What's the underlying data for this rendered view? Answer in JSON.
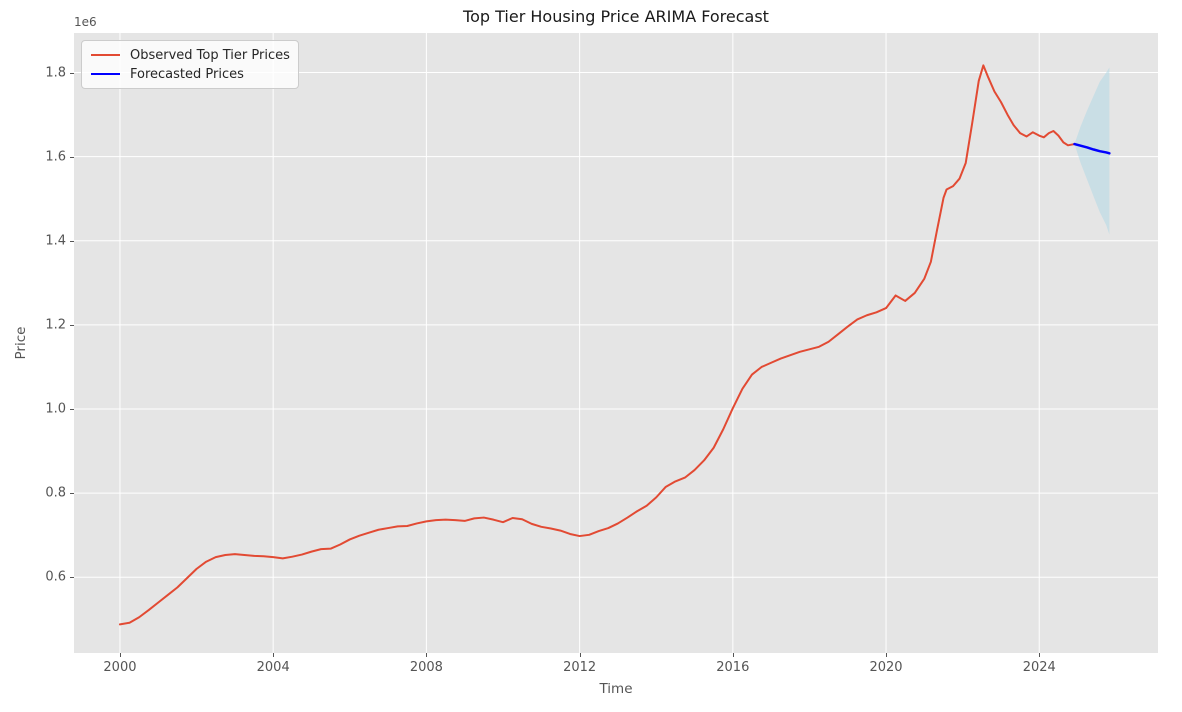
{
  "title": "Top Tier Housing Price ARIMA Forecast",
  "axes": {
    "xlabel": "Time",
    "ylabel": "Price",
    "offset_text": "1e6"
  },
  "legend": {
    "items": [
      {
        "label": "Observed Top Tier Prices",
        "color": "#E24A33"
      },
      {
        "label": "Forecasted Prices",
        "color": "#0000FF"
      }
    ]
  },
  "colors": {
    "figure_background": "#FFFFFF",
    "plot_background": "#E5E5E5",
    "gridline": "#FFFFFF",
    "observed_line": "#E24A33",
    "forecast_line": "#0000FF",
    "ci_fill": "rgba(173,216,230,0.5)",
    "tick_label": "#555555",
    "title_text": "#1a1a1a"
  },
  "chart_data": {
    "type": "line",
    "title": "Top Tier Housing Price ARIMA Forecast",
    "xlabel": "Time",
    "ylabel": "Price",
    "y_scale_offset": "1e6",
    "grid": true,
    "legend_position": "upper left",
    "xlim": [
      1998.8,
      2027.1
    ],
    "ylim": [
      0.42,
      1.894
    ],
    "x_ticks": [
      2000,
      2004,
      2008,
      2012,
      2016,
      2020,
      2024
    ],
    "x_tick_labels": [
      "2000",
      "2004",
      "2008",
      "2012",
      "2016",
      "2020",
      "2024"
    ],
    "y_ticks": [
      0.6,
      0.8,
      1.0,
      1.2,
      1.4,
      1.6,
      1.8
    ],
    "y_tick_labels": [
      "0.6",
      "0.8",
      "1.0",
      "1.2",
      "1.4",
      "1.6",
      "1.8"
    ],
    "series": [
      {
        "name": "Observed Top Tier Prices",
        "color": "#E24A33",
        "width": 2,
        "points": [
          [
            2000.0,
            0.488
          ],
          [
            2000.25,
            0.492
          ],
          [
            2000.5,
            0.505
          ],
          [
            2000.75,
            0.522
          ],
          [
            2001.0,
            0.54
          ],
          [
            2001.25,
            0.558
          ],
          [
            2001.5,
            0.576
          ],
          [
            2001.75,
            0.598
          ],
          [
            2002.0,
            0.62
          ],
          [
            2002.25,
            0.637
          ],
          [
            2002.5,
            0.648
          ],
          [
            2002.75,
            0.653
          ],
          [
            2003.0,
            0.655
          ],
          [
            2003.25,
            0.653
          ],
          [
            2003.5,
            0.651
          ],
          [
            2003.75,
            0.65
          ],
          [
            2004.0,
            0.648
          ],
          [
            2004.25,
            0.645
          ],
          [
            2004.5,
            0.649
          ],
          [
            2004.75,
            0.654
          ],
          [
            2005.0,
            0.661
          ],
          [
            2005.25,
            0.667
          ],
          [
            2005.5,
            0.668
          ],
          [
            2005.75,
            0.678
          ],
          [
            2006.0,
            0.69
          ],
          [
            2006.25,
            0.699
          ],
          [
            2006.5,
            0.706
          ],
          [
            2006.75,
            0.713
          ],
          [
            2007.0,
            0.717
          ],
          [
            2007.25,
            0.721
          ],
          [
            2007.5,
            0.722
          ],
          [
            2007.75,
            0.728
          ],
          [
            2008.0,
            0.733
          ],
          [
            2008.25,
            0.736
          ],
          [
            2008.5,
            0.737
          ],
          [
            2008.75,
            0.736
          ],
          [
            2009.0,
            0.734
          ],
          [
            2009.25,
            0.74
          ],
          [
            2009.5,
            0.742
          ],
          [
            2009.75,
            0.737
          ],
          [
            2010.0,
            0.731
          ],
          [
            2010.25,
            0.741
          ],
          [
            2010.5,
            0.738
          ],
          [
            2010.75,
            0.727
          ],
          [
            2011.0,
            0.72
          ],
          [
            2011.25,
            0.716
          ],
          [
            2011.5,
            0.711
          ],
          [
            2011.75,
            0.703
          ],
          [
            2012.0,
            0.698
          ],
          [
            2012.25,
            0.701
          ],
          [
            2012.5,
            0.71
          ],
          [
            2012.75,
            0.717
          ],
          [
            2013.0,
            0.728
          ],
          [
            2013.25,
            0.742
          ],
          [
            2013.5,
            0.757
          ],
          [
            2013.75,
            0.77
          ],
          [
            2014.0,
            0.79
          ],
          [
            2014.25,
            0.815
          ],
          [
            2014.5,
            0.828
          ],
          [
            2014.75,
            0.837
          ],
          [
            2015.0,
            0.855
          ],
          [
            2015.25,
            0.878
          ],
          [
            2015.5,
            0.908
          ],
          [
            2015.75,
            0.952
          ],
          [
            2016.0,
            1.002
          ],
          [
            2016.25,
            1.048
          ],
          [
            2016.5,
            1.082
          ],
          [
            2016.75,
            1.1
          ],
          [
            2017.0,
            1.11
          ],
          [
            2017.25,
            1.12
          ],
          [
            2017.5,
            1.128
          ],
          [
            2017.75,
            1.136
          ],
          [
            2018.0,
            1.142
          ],
          [
            2018.25,
            1.148
          ],
          [
            2018.5,
            1.16
          ],
          [
            2018.75,
            1.178
          ],
          [
            2019.0,
            1.196
          ],
          [
            2019.25,
            1.213
          ],
          [
            2019.5,
            1.223
          ],
          [
            2019.75,
            1.23
          ],
          [
            2020.0,
            1.24
          ],
          [
            2020.25,
            1.27
          ],
          [
            2020.5,
            1.257
          ],
          [
            2020.75,
            1.276
          ],
          [
            2021.0,
            1.31
          ],
          [
            2021.17,
            1.35
          ],
          [
            2021.33,
            1.425
          ],
          [
            2021.5,
            1.502
          ],
          [
            2021.58,
            1.522
          ],
          [
            2021.75,
            1.53
          ],
          [
            2021.92,
            1.548
          ],
          [
            2022.08,
            1.585
          ],
          [
            2022.25,
            1.68
          ],
          [
            2022.42,
            1.78
          ],
          [
            2022.54,
            1.817
          ],
          [
            2022.67,
            1.788
          ],
          [
            2022.83,
            1.755
          ],
          [
            2023.0,
            1.73
          ],
          [
            2023.17,
            1.7
          ],
          [
            2023.33,
            1.675
          ],
          [
            2023.5,
            1.656
          ],
          [
            2023.67,
            1.648
          ],
          [
            2023.83,
            1.658
          ],
          [
            2024.0,
            1.65
          ],
          [
            2024.12,
            1.646
          ],
          [
            2024.25,
            1.656
          ],
          [
            2024.37,
            1.661
          ],
          [
            2024.5,
            1.65
          ],
          [
            2024.63,
            1.634
          ],
          [
            2024.75,
            1.627
          ],
          [
            2024.92,
            1.63
          ]
        ]
      },
      {
        "name": "Forecasted Prices",
        "color": "#0000FF",
        "width": 2.5,
        "points": [
          [
            2024.92,
            1.63
          ],
          [
            2025.08,
            1.626
          ],
          [
            2025.25,
            1.622
          ],
          [
            2025.42,
            1.617
          ],
          [
            2025.58,
            1.613
          ],
          [
            2025.75,
            1.61
          ],
          [
            2025.83,
            1.608
          ]
        ]
      }
    ],
    "confidence_interval": {
      "x": [
        2024.92,
        2025.08,
        2025.25,
        2025.42,
        2025.58,
        2025.75,
        2025.83
      ],
      "upper": [
        1.63,
        1.672,
        1.71,
        1.745,
        1.778,
        1.8,
        1.812
      ],
      "lower": [
        1.63,
        1.585,
        1.545,
        1.505,
        1.468,
        1.437,
        1.415
      ],
      "fill": "rgba(173,216,230,0.5)"
    }
  }
}
